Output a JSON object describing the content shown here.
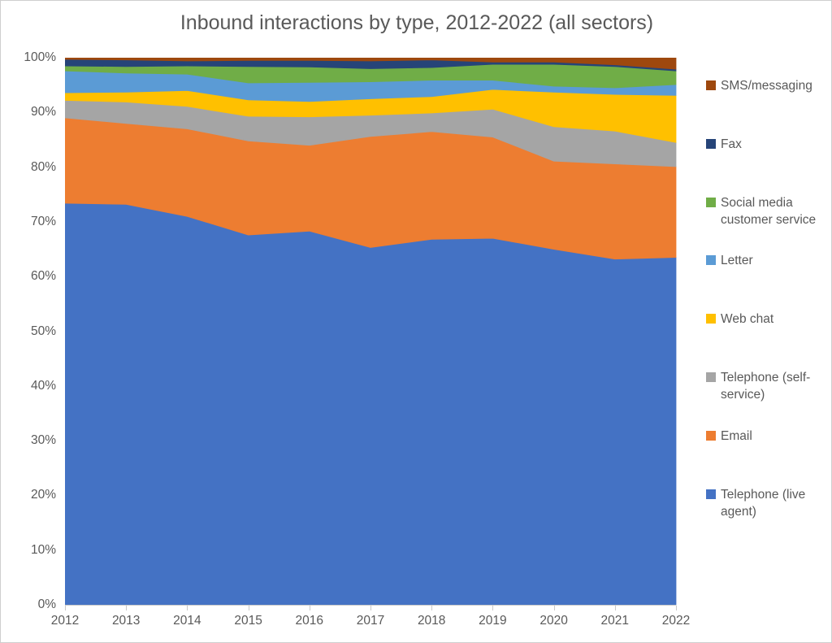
{
  "title": "Inbound interactions by type, 2012-2022 (all sectors)",
  "colors": {
    "axis_line": "#c9c9c9",
    "tick_text": "#595959",
    "title_text": "#595959",
    "legend_text": "#595959",
    "background": "#ffffff",
    "frame_border": "#cfcfcf"
  },
  "chart_data": {
    "type": "area",
    "stacked": true,
    "percent_stacked": true,
    "title": "Inbound interactions by type, 2012-2022 (all sectors)",
    "xlabel": "",
    "ylabel": "",
    "x": [
      2012,
      2013,
      2014,
      2015,
      2016,
      2017,
      2018,
      2019,
      2020,
      2021,
      2022
    ],
    "y_ticks": [
      "0%",
      "10%",
      "20%",
      "30%",
      "40%",
      "50%",
      "60%",
      "70%",
      "80%",
      "90%",
      "100%"
    ],
    "ylim": [
      0,
      100
    ],
    "grid": false,
    "legend_position": "right",
    "legend_order": "reverse-of-stack (top band first)",
    "series": [
      {
        "name": "Telephone (live agent)",
        "color": "#4472C4",
        "values": [
          73.4,
          73.2,
          71.0,
          67.6,
          68.3,
          65.3,
          66.8,
          67.0,
          65.0,
          63.2,
          63.5
        ]
      },
      {
        "name": "Email",
        "color": "#ED7D31",
        "values": [
          15.6,
          14.8,
          16.0,
          17.2,
          15.7,
          20.3,
          19.7,
          18.5,
          16.1,
          17.4,
          16.6
        ]
      },
      {
        "name": "Telephone (self-service)",
        "color": "#A5A5A5",
        "values": [
          3.2,
          3.9,
          4.1,
          4.5,
          5.2,
          3.9,
          3.4,
          5.1,
          6.3,
          6.0,
          4.4
        ]
      },
      {
        "name": "Web chat",
        "color": "#FFC000",
        "values": [
          1.4,
          1.8,
          2.9,
          3.0,
          2.8,
          3.0,
          3.0,
          3.6,
          6.3,
          6.7,
          8.6
        ]
      },
      {
        "name": "Letter",
        "color": "#5B9BD5",
        "values": [
          4.0,
          3.5,
          3.0,
          3.1,
          3.5,
          3.1,
          3.0,
          1.7,
          1.1,
          1.2,
          2.0
        ]
      },
      {
        "name": "Social media customer service",
        "color": "#70AD47",
        "values": [
          0.9,
          1.2,
          1.5,
          3.0,
          2.8,
          2.4,
          2.3,
          2.9,
          4.0,
          3.9,
          2.5
        ]
      },
      {
        "name": "Fax",
        "color": "#264478",
        "values": [
          1.2,
          1.2,
          0.9,
          1.1,
          1.2,
          1.4,
          1.4,
          0.4,
          0.4,
          0.3,
          0.3
        ]
      },
      {
        "name": "SMS/messaging",
        "color": "#9E480E",
        "values": [
          0.3,
          0.4,
          0.6,
          0.5,
          0.5,
          0.6,
          0.4,
          0.8,
          0.8,
          1.3,
          2.1
        ]
      }
    ]
  },
  "layout_note_values_are_percent_of_total": true
}
